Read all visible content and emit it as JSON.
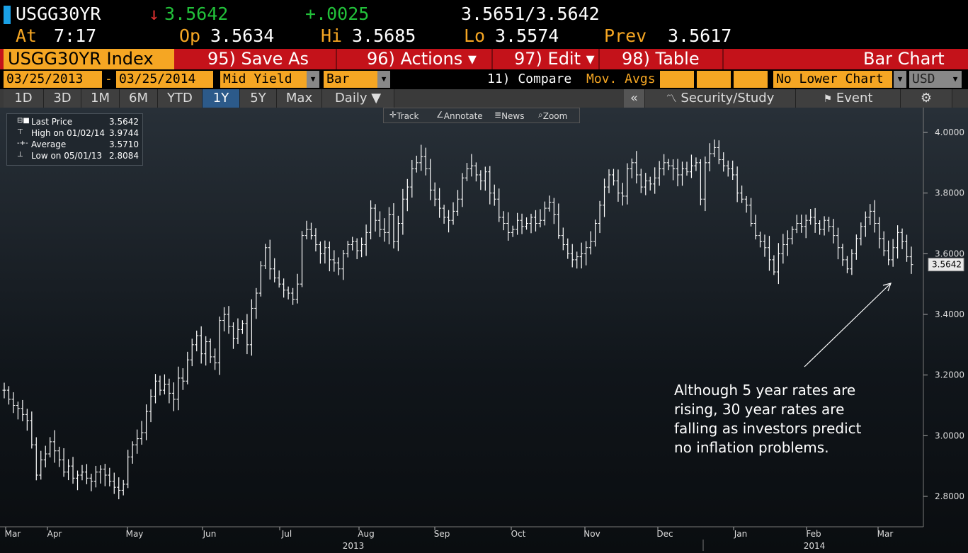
{
  "header": {
    "ticker": "USGG30YR",
    "arrow": "↓",
    "last": "3.5642",
    "change": "+.0025",
    "bid_ask": "3.5651/3.5642",
    "at_label": "At",
    "at_value": "7:17",
    "op_label": "Op",
    "op_value": "3.5634",
    "hi_label": "Hi",
    "hi_value": "3.5685",
    "lo_label": "Lo",
    "lo_value": "3.5574",
    "prev_label": "Prev",
    "prev_value": "3.5617"
  },
  "menubar": {
    "index_label": "USGG30YR Index",
    "save_as": "95) Save As",
    "actions": "96) Actions ▾",
    "edit": "97) Edit ▾",
    "table": "98) Table",
    "bar_chart": "Bar Chart"
  },
  "controls": {
    "start_date": "03/25/2013",
    "dash": "-",
    "end_date": "03/25/2014",
    "field": "Mid Yield",
    "chart_type": "Bar",
    "compare": "11) Compare",
    "mov_avgs": "Mov. Avgs",
    "lower_chart": "No Lower Chart",
    "currency": "USD"
  },
  "tabs": {
    "t1": "1D",
    "t2": "3D",
    "t3": "1M",
    "t4": "6M",
    "t5": "YTD",
    "t6": "1Y",
    "t7": "5Y",
    "t8": "Max",
    "daily": "Daily ▼",
    "collapse": "«",
    "security_study": "Security/Study",
    "event": "Event",
    "settings": "⚙"
  },
  "toolbox": {
    "track": "Track",
    "annotate": "Annotate",
    "news": "News",
    "zoom": "Zoom"
  },
  "legend": {
    "last_price_label": "Last Price",
    "last_price_value": "3.5642",
    "high_label": "High on 01/02/14",
    "high_value": "3.9744",
    "average_label": "Average",
    "average_value": "3.5710",
    "low_label": "Low on 05/01/13",
    "low_value": "2.8084"
  },
  "annotation": {
    "line1": "Although 5 year rates are",
    "line2": "rising, 30 year rates are",
    "line3": "falling as investors predict",
    "line4": "no inflation problems."
  },
  "colors": {
    "accent": "#f5a623",
    "menu_red": "#c4121a",
    "up_green": "#22c13a",
    "down_red": "#e03030",
    "tab_active": "#2c5a8a"
  },
  "chart_data": {
    "type": "bar",
    "title": "",
    "ylabel": "",
    "xlabel": "",
    "ylim": [
      2.75,
      4.05
    ],
    "y_ticks": [
      "4.0000",
      "3.8000",
      "3.6000",
      "3.4000",
      "3.2000",
      "3.0000",
      "2.8000"
    ],
    "x_ticks": [
      "Mar",
      "Apr",
      "May",
      "Jun",
      "Jul",
      "Aug",
      "Sep",
      "Oct",
      "Nov",
      "Dec",
      "Jan",
      "Feb",
      "Mar"
    ],
    "year_labels": [
      "2013",
      "2014"
    ],
    "last_value_label": "3.5642",
    "grid": false,
    "series": [
      {
        "name": "Last Price",
        "values": [
          3.15,
          3.12,
          3.1,
          3.09,
          3.07,
          3.05,
          2.97,
          2.87,
          2.92,
          2.94,
          2.98,
          2.95,
          2.92,
          2.88,
          2.9,
          2.86,
          2.87,
          2.88,
          2.86,
          2.85,
          2.88,
          2.89,
          2.87,
          2.85,
          2.83,
          2.82,
          2.84,
          2.93,
          2.97,
          2.99,
          3.01,
          3.08,
          3.13,
          3.18,
          3.15,
          3.17,
          3.14,
          3.12,
          3.19,
          3.18,
          3.25,
          3.3,
          3.33,
          3.27,
          3.31,
          3.26,
          3.24,
          3.38,
          3.4,
          3.36,
          3.32,
          3.35,
          3.37,
          3.3,
          3.42,
          3.47,
          3.56,
          3.62,
          3.55,
          3.52,
          3.5,
          3.48,
          3.47,
          3.45,
          3.5,
          3.66,
          3.68,
          3.66,
          3.63,
          3.6,
          3.62,
          3.58,
          3.57,
          3.55,
          3.6,
          3.63,
          3.64,
          3.61,
          3.63,
          3.67,
          3.75,
          3.71,
          3.68,
          3.67,
          3.73,
          3.64,
          3.7,
          3.78,
          3.82,
          3.88,
          3.9,
          3.92,
          3.88,
          3.81,
          3.78,
          3.75,
          3.72,
          3.71,
          3.74,
          3.78,
          3.85,
          3.88,
          3.89,
          3.86,
          3.84,
          3.87,
          3.8,
          3.78,
          3.72,
          3.7,
          3.67,
          3.68,
          3.71,
          3.69,
          3.7,
          3.72,
          3.7,
          3.71,
          3.75,
          3.77,
          3.73,
          3.66,
          3.63,
          3.6,
          3.58,
          3.59,
          3.6,
          3.62,
          3.64,
          3.7,
          3.76,
          3.82,
          3.86,
          3.84,
          3.8,
          3.79,
          3.88,
          3.9,
          3.86,
          3.82,
          3.84,
          3.83,
          3.85,
          3.88,
          3.9,
          3.89,
          3.88,
          3.86,
          3.88,
          3.87,
          3.89,
          3.9,
          3.78,
          3.9,
          3.93,
          3.95,
          3.91,
          3.89,
          3.88,
          3.86,
          3.8,
          3.78,
          3.76,
          3.7,
          3.66,
          3.64,
          3.62,
          3.58,
          3.54,
          3.6,
          3.63,
          3.65,
          3.68,
          3.7,
          3.69,
          3.71,
          3.72,
          3.7,
          3.68,
          3.71,
          3.69,
          3.66,
          3.62,
          3.58,
          3.55,
          3.6,
          3.65,
          3.69,
          3.72,
          3.74,
          3.7,
          3.65,
          3.61,
          3.58,
          3.62,
          3.67,
          3.64,
          3.59,
          3.5642
        ]
      }
    ]
  }
}
